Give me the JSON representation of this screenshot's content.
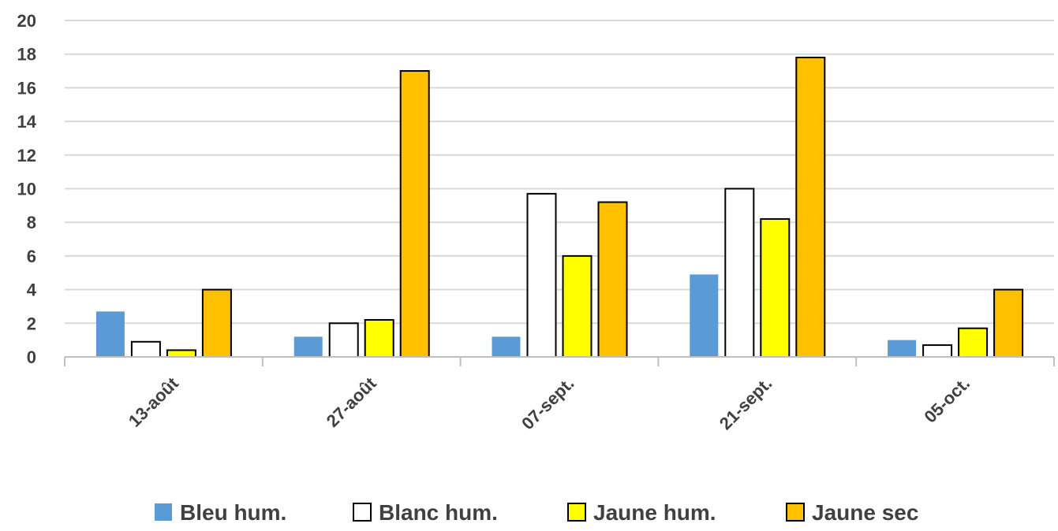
{
  "chart_data": {
    "type": "bar",
    "title": "",
    "xlabel": "",
    "ylabel": "",
    "ylim": [
      0,
      20
    ],
    "yticks": [
      0,
      2,
      4,
      6,
      8,
      10,
      12,
      14,
      16,
      18,
      20
    ],
    "grid": true,
    "legend_position": "bottom",
    "categories": [
      "13-août",
      "27-août",
      "07-sept.",
      "21-sept.",
      "05-oct."
    ],
    "series": [
      {
        "name": "Bleu hum.",
        "color": "#5b9bd5",
        "outline": false,
        "values": [
          2.7,
          1.2,
          1.2,
          4.9,
          1.0
        ]
      },
      {
        "name": "Blanc hum.",
        "color": "#ffffff",
        "outline": true,
        "values": [
          0.9,
          2.0,
          9.7,
          10.0,
          0.7
        ]
      },
      {
        "name": "Jaune hum.",
        "color": "#ffff00",
        "outline": true,
        "values": [
          0.4,
          2.2,
          6.0,
          8.2,
          1.7
        ]
      },
      {
        "name": "Jaune sec",
        "color": "#ffc000",
        "outline": true,
        "values": [
          4.0,
          17.0,
          9.2,
          17.8,
          4.0
        ]
      }
    ]
  }
}
